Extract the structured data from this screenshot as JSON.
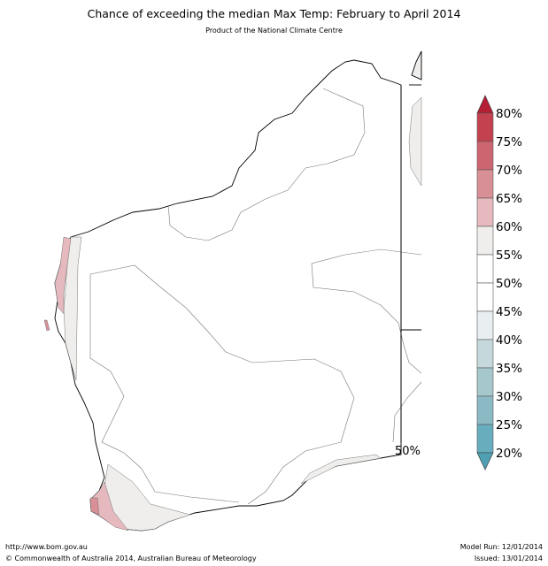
{
  "title": "Chance of exceeding the median Max Temp: February to April 2014",
  "subtitle": "Product of the National Climate Centre",
  "map": {
    "region": "Western Australia",
    "contour_label": "50%",
    "colors": {
      "land_neutral": "#ffffff",
      "near_neutral": "#efeeec",
      "pink_light": "#e5b9bd",
      "pink_mid": "#d98f96",
      "coast": "#000000",
      "contour": "#777777"
    }
  },
  "colorbar": {
    "labels": [
      "80%",
      "75%",
      "70%",
      "65%",
      "60%",
      "55%",
      "50%",
      "45%",
      "40%",
      "35%",
      "30%",
      "25%",
      "20%"
    ],
    "segment_colors": [
      "#c4424f",
      "#cd6570",
      "#d98f96",
      "#e5b9bd",
      "#efeeec",
      "#ffffff",
      "#ffffff",
      "#e9eef0",
      "#c5d9dc",
      "#a6c8cc",
      "#8cbac4",
      "#67adbd"
    ],
    "top_extend_color": "#b51f35",
    "bottom_extend_color": "#4fa0b3"
  },
  "footer": {
    "url": "http://www.bom.gov.au",
    "copyright": "©  Commonwealth of Australia 2014, Australian Bureau of Meteorology",
    "model_run": "Model Run: 12/01/2014",
    "issued": "Issued: 13/01/2014"
  }
}
